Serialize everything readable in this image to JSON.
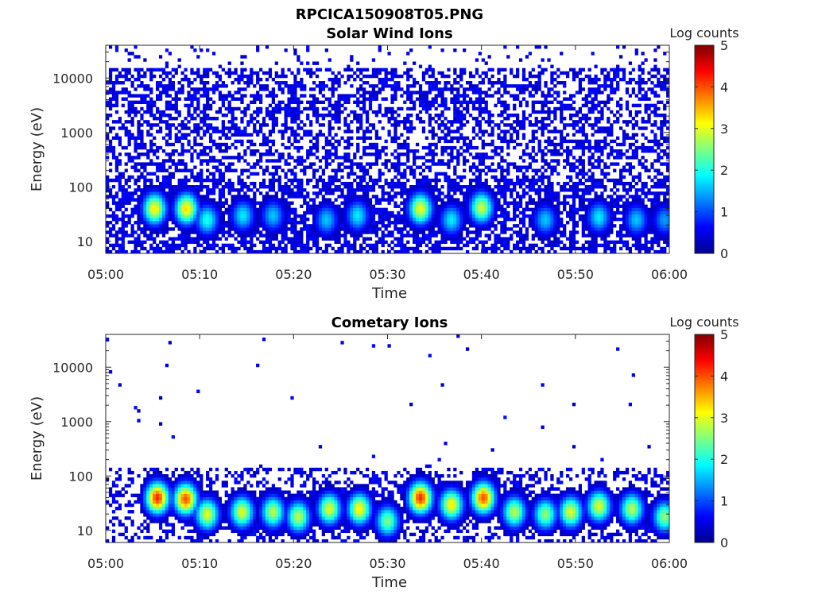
{
  "figure": {
    "suptitle": "RPCICA150908T05.PNG"
  },
  "chart_data": [
    {
      "type": "heatmap",
      "title": "Solar Wind Ions",
      "xlabel": "Time",
      "ylabel": "Energy (eV)",
      "x_ticks": [
        "05:00",
        "05:10",
        "05:20",
        "05:30",
        "05:40",
        "05:50",
        "06:00"
      ],
      "xlim": [
        "05:00",
        "06:00"
      ],
      "y_scale": "log",
      "y_ticks": [
        10,
        100,
        1000,
        10000
      ],
      "y_tick_labels": [
        "10",
        "100",
        "1000",
        "10000"
      ],
      "ylim": [
        6,
        40000
      ],
      "colorbar": {
        "label": "Log counts",
        "range": [
          0,
          5
        ],
        "ticks": [
          0,
          1,
          2,
          3,
          4,
          5
        ],
        "colormap": "jet"
      },
      "background_level": 0.3,
      "background_fill": 0.5,
      "hotspots": [
        {
          "time_min": 5.2,
          "energy_ev": 40,
          "log_counts": 3.2
        },
        {
          "time_min": 8.6,
          "energy_ev": 40,
          "log_counts": 3.3
        },
        {
          "time_min": 10.8,
          "energy_ev": 25,
          "log_counts": 2.0
        },
        {
          "time_min": 14.6,
          "energy_ev": 30,
          "log_counts": 1.8
        },
        {
          "time_min": 17.8,
          "energy_ev": 30,
          "log_counts": 1.6
        },
        {
          "time_min": 23.5,
          "energy_ev": 25,
          "log_counts": 1.6
        },
        {
          "time_min": 26.8,
          "energy_ev": 30,
          "log_counts": 1.8
        },
        {
          "time_min": 33.5,
          "energy_ev": 40,
          "log_counts": 3.1
        },
        {
          "time_min": 36.8,
          "energy_ev": 25,
          "log_counts": 1.8
        },
        {
          "time_min": 40.0,
          "energy_ev": 42,
          "log_counts": 2.9
        },
        {
          "time_min": 46.8,
          "energy_ev": 25,
          "log_counts": 1.6
        },
        {
          "time_min": 52.5,
          "energy_ev": 28,
          "log_counts": 1.8
        },
        {
          "time_min": 56.5,
          "energy_ev": 25,
          "log_counts": 1.6
        },
        {
          "time_min": 59.5,
          "energy_ev": 25,
          "log_counts": 1.4
        }
      ]
    },
    {
      "type": "heatmap",
      "title": "Cometary Ions",
      "xlabel": "Time",
      "ylabel": "Energy (eV)",
      "x_ticks": [
        "05:00",
        "05:10",
        "05:20",
        "05:30",
        "05:40",
        "05:50",
        "06:00"
      ],
      "xlim": [
        "05:00",
        "06:00"
      ],
      "y_scale": "log",
      "y_ticks": [
        10,
        100,
        1000,
        10000
      ],
      "y_tick_labels": [
        "10",
        "100",
        "1000",
        "10000"
      ],
      "ylim": [
        6,
        40000
      ],
      "colorbar": {
        "label": "Log counts",
        "range": [
          0,
          5
        ],
        "ticks": [
          0,
          1,
          2,
          3,
          4,
          5
        ],
        "colormap": "jet"
      },
      "background_level": 0.3,
      "background_fill": 0.35,
      "hotspots": [
        {
          "time_min": 5.5,
          "energy_ev": 40,
          "log_counts": 4.2
        },
        {
          "time_min": 8.5,
          "energy_ev": 38,
          "log_counts": 4.0
        },
        {
          "time_min": 10.8,
          "energy_ev": 20,
          "log_counts": 3.0
        },
        {
          "time_min": 14.5,
          "energy_ev": 22,
          "log_counts": 3.0
        },
        {
          "time_min": 17.8,
          "energy_ev": 22,
          "log_counts": 2.8
        },
        {
          "time_min": 20.5,
          "energy_ev": 18,
          "log_counts": 2.8
        },
        {
          "time_min": 23.8,
          "energy_ev": 25,
          "log_counts": 3.0
        },
        {
          "time_min": 27.0,
          "energy_ev": 25,
          "log_counts": 3.2
        },
        {
          "time_min": 30.0,
          "energy_ev": 15,
          "log_counts": 2.5
        },
        {
          "time_min": 33.5,
          "energy_ev": 40,
          "log_counts": 4.2
        },
        {
          "time_min": 36.8,
          "energy_ev": 30,
          "log_counts": 3.2
        },
        {
          "time_min": 40.2,
          "energy_ev": 40,
          "log_counts": 4.0
        },
        {
          "time_min": 43.5,
          "energy_ev": 22,
          "log_counts": 2.8
        },
        {
          "time_min": 46.8,
          "energy_ev": 20,
          "log_counts": 2.6
        },
        {
          "time_min": 49.5,
          "energy_ev": 22,
          "log_counts": 3.0
        },
        {
          "time_min": 52.5,
          "energy_ev": 28,
          "log_counts": 3.0
        },
        {
          "time_min": 56.0,
          "energy_ev": 25,
          "log_counts": 2.8
        },
        {
          "time_min": 59.5,
          "energy_ev": 18,
          "log_counts": 2.6
        }
      ]
    }
  ]
}
